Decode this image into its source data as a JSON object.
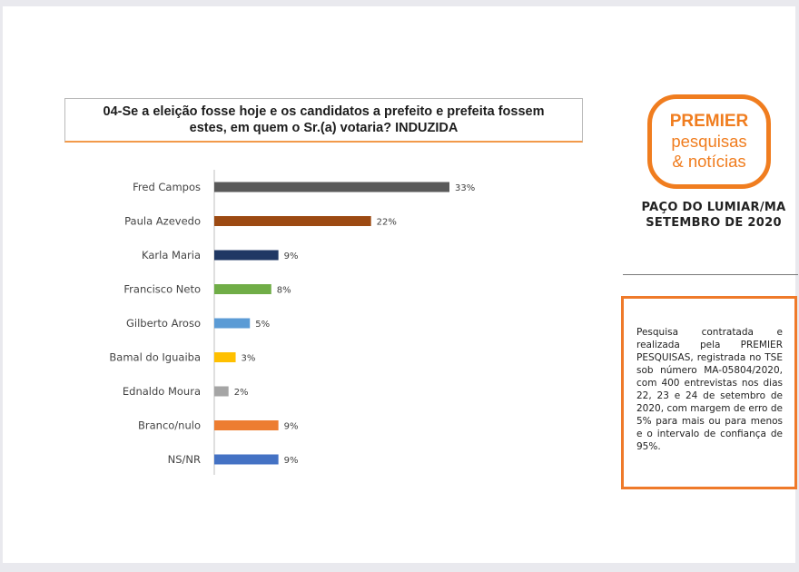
{
  "title": {
    "line1": "04-Se a eleição fosse hoje e os candidatos a prefeito e prefeita fossem",
    "line2": "estes, em quem o Sr.(a) votaria? INDUZIDA"
  },
  "logo": {
    "line1": "PREMIER",
    "line2": "pesquisas",
    "line3": "& notícias",
    "color": "#f07d1f"
  },
  "location": {
    "line1": "PAÇO DO LUMIAR/MA",
    "line2": "SETEMBRO DE 2020"
  },
  "info_text": "Pesquisa contratada e realizada pela PREMIER PESQUISAS, registrada no TSE sob número MA-05804/2020, com 400 entrevistas nos dias 22, 23 e 24 de setembro de 2020, com margem de erro de 5% para mais ou para menos e o intervalo de confiança de 95%.",
  "chart_data": {
    "type": "bar",
    "orientation": "horizontal",
    "categories": [
      "Fred Campos",
      "Paula Azevedo",
      "Karla Maria",
      "Francisco Neto",
      "Gilberto Aroso",
      "Bamal do Iguaiba",
      "Ednaldo Moura",
      "Branco/nulo",
      "NS/NR"
    ],
    "values": [
      33,
      22,
      9,
      8,
      5,
      3,
      2,
      9,
      9
    ],
    "value_labels": [
      "33%",
      "22%",
      "9%",
      "8%",
      "5%",
      "3%",
      "2%",
      "9%",
      "9%"
    ],
    "colors": [
      "#595959",
      "#9c4a12",
      "#203864",
      "#70ad47",
      "#5b9bd5",
      "#ffc000",
      "#a5a5a5",
      "#ed7d31",
      "#4472c4"
    ],
    "xlim": [
      0,
      33
    ],
    "title": "",
    "xlabel": "",
    "ylabel": "",
    "grid": false,
    "legend": "none"
  }
}
